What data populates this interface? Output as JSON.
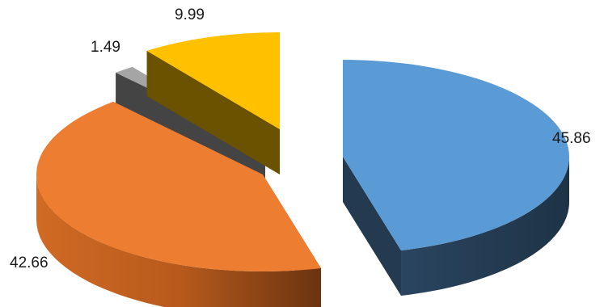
{
  "chart_data": {
    "type": "pie",
    "title": "",
    "style": "3d-exploded",
    "legend": "none",
    "slices": [
      {
        "label_text": "45.86",
        "value": 45.86,
        "color": "#5B9BD5",
        "side_color": "#243A50"
      },
      {
        "label_text": "42.66",
        "value": 42.66,
        "color": "#ED7D31",
        "side_color": "#9A4A18"
      },
      {
        "label_text": "1.49",
        "value": 1.49,
        "color": "#A5A5A5",
        "side_color": "#444444"
      },
      {
        "label_text": "9.99",
        "value": 9.99,
        "color": "#FFC000",
        "side_color": "#6B5200"
      }
    ]
  }
}
